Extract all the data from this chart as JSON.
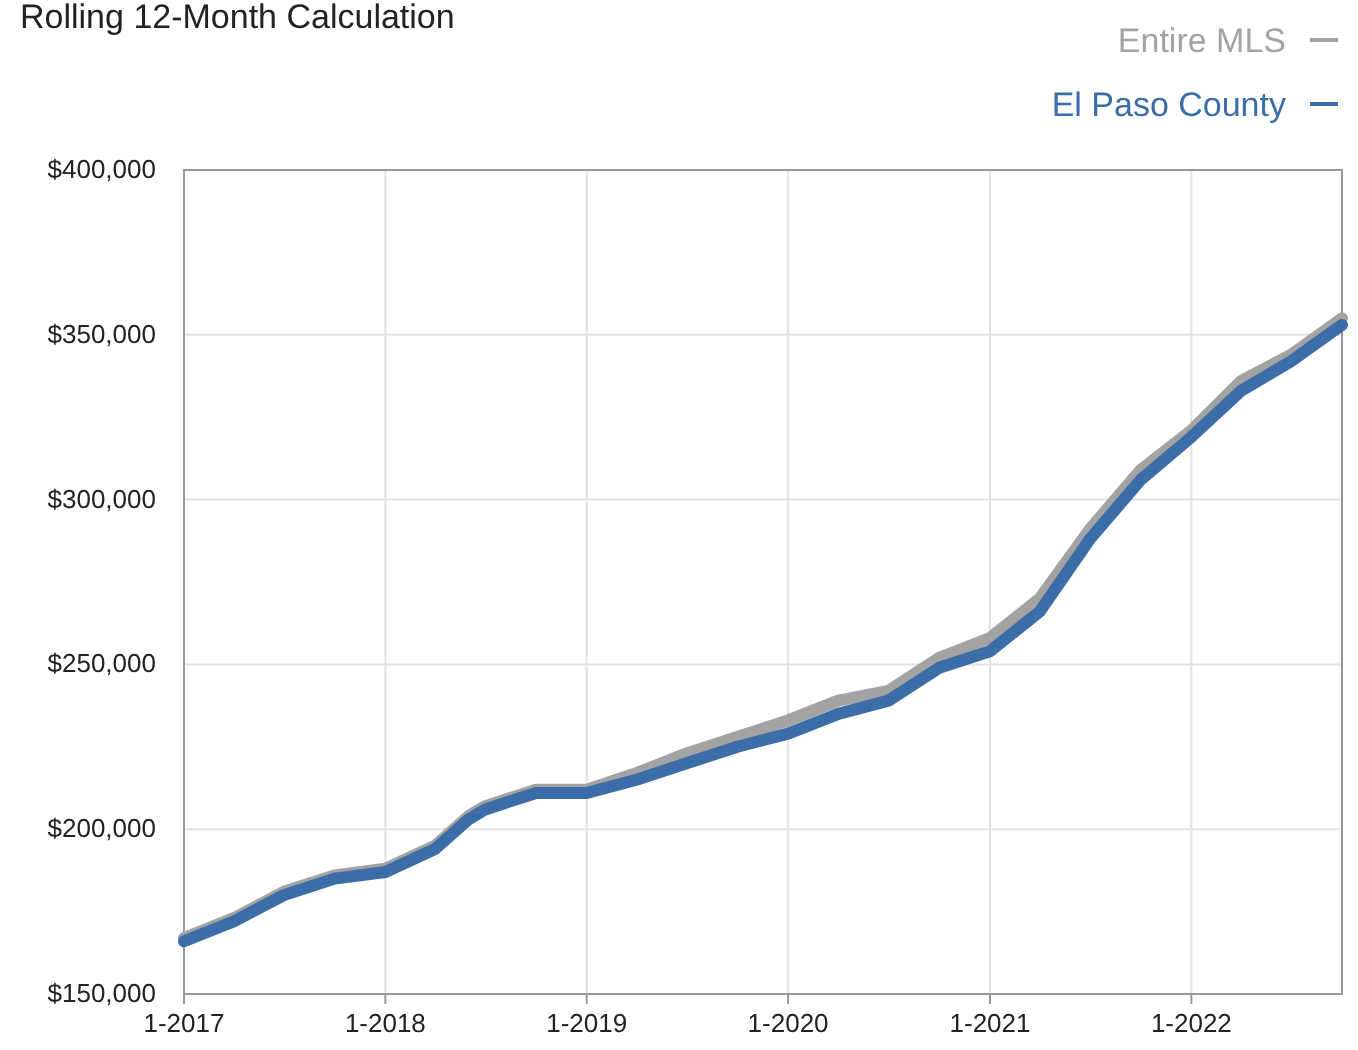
{
  "chart_data": {
    "type": "line",
    "title": "Rolling 12-Month Calculation",
    "x": [
      "2017-01",
      "2017-04",
      "2017-07",
      "2017-10",
      "2018-01",
      "2018-04",
      "2018-06",
      "2018-07",
      "2018-10",
      "2019-01",
      "2019-04",
      "2019-07",
      "2019-10",
      "2020-01",
      "2020-04",
      "2020-07",
      "2020-10",
      "2021-01",
      "2021-04",
      "2021-07",
      "2021-10",
      "2022-01",
      "2022-04",
      "2022-07",
      "2022-10"
    ],
    "series": [
      {
        "name": "Entire MLS",
        "color": "#a3a3a3",
        "values": [
          167000,
          173000,
          181000,
          186000,
          188000,
          195000,
          204000,
          207000,
          212000,
          212000,
          217000,
          223000,
          228000,
          233000,
          239000,
          242000,
          252000,
          258000,
          270000,
          291000,
          309000,
          321000,
          336000,
          344000,
          355000
        ]
      },
      {
        "name": "El Paso County",
        "color": "#3b6ea8",
        "values": [
          166000,
          172000,
          180000,
          185000,
          187000,
          194000,
          203000,
          206000,
          211000,
          211000,
          215000,
          220000,
          225000,
          229000,
          235000,
          239000,
          249000,
          254000,
          266000,
          288000,
          306000,
          319000,
          333000,
          342000,
          353000
        ]
      }
    ],
    "xlim": [
      "2017-01",
      "2022-10"
    ],
    "xticks": [
      {
        "value": "2017-01",
        "label": "1-2017"
      },
      {
        "value": "2018-01",
        "label": "1-2018"
      },
      {
        "value": "2019-01",
        "label": "1-2019"
      },
      {
        "value": "2020-01",
        "label": "1-2020"
      },
      {
        "value": "2021-01",
        "label": "1-2021"
      },
      {
        "value": "2022-01",
        "label": "1-2022"
      }
    ],
    "ylim": [
      150000,
      400000
    ],
    "yticks": [
      {
        "value": 150000,
        "label": "$150,000"
      },
      {
        "value": 200000,
        "label": "$200,000"
      },
      {
        "value": 250000,
        "label": "$250,000"
      },
      {
        "value": 300000,
        "label": "$300,000"
      },
      {
        "value": 350000,
        "label": "$350,000"
      },
      {
        "value": 400000,
        "label": "$400,000"
      }
    ],
    "grid": true,
    "legend": "top right",
    "line_style": "solid",
    "marker": "none"
  }
}
